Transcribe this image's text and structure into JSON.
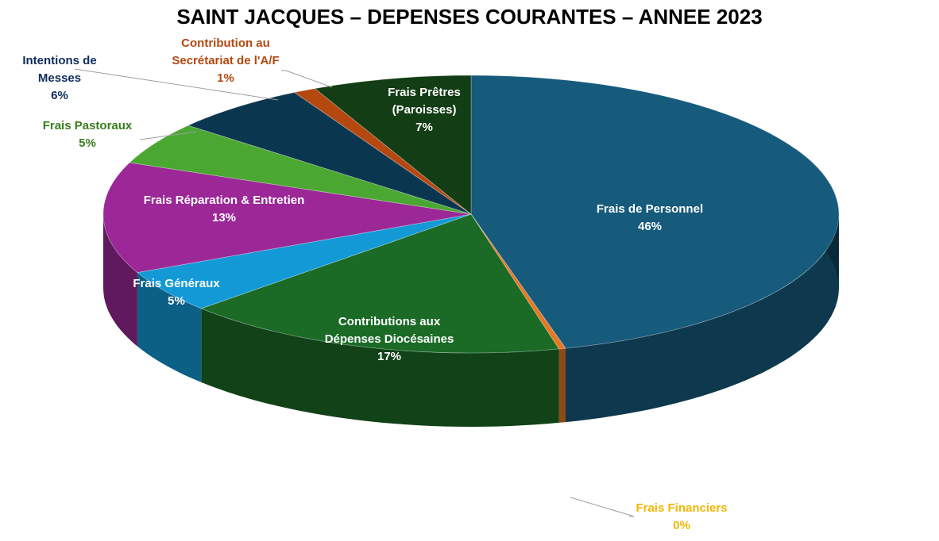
{
  "chart_data": {
    "type": "pie",
    "title": "SAINT JACQUES – DEPENSES COURANTES – ANNEE 2023",
    "slices": [
      {
        "label": [
          "Frais de Personnel"
        ],
        "pct": "46%",
        "value": 46,
        "color": "#165a7c",
        "text": "#ffffff"
      },
      {
        "label": [
          "Frais Financiers"
        ],
        "pct": "0%",
        "value": 0.3,
        "color": "#e87722",
        "text": "#f2b705"
      },
      {
        "label": [
          "Contributions aux",
          "Dépenses Diocésaines"
        ],
        "pct": "17%",
        "value": 17,
        "color": "#1b6b27",
        "text": "#ffffff"
      },
      {
        "label": [
          "Frais Généraux"
        ],
        "pct": "5%",
        "value": 5,
        "color": "#139ad6",
        "text": "#ffffff"
      },
      {
        "label": [
          "Frais Réparation & Entretien"
        ],
        "pct": "13%",
        "value": 13,
        "color": "#9b2896",
        "text": "#ffffff"
      },
      {
        "label": [
          "Frais Pastoraux"
        ],
        "pct": "5%",
        "value": 5,
        "color": "#4aa832",
        "text": "#3a7d1f"
      },
      {
        "label": [
          "Intentions de",
          "Messes"
        ],
        "pct": "6%",
        "value": 6,
        "color": "#0b3650",
        "text": "#0e2b5c"
      },
      {
        "label": [
          "Contribution au",
          "Secrétariat de l'A/F"
        ],
        "pct": "1%",
        "value": 1,
        "color": "#b5480f",
        "text": "#b5480f"
      },
      {
        "label": [
          "Frais Prêtres",
          "(Paroisses)"
        ],
        "pct": "7%",
        "value": 7,
        "color": "#133d14",
        "text": "#ffffff"
      }
    ]
  }
}
